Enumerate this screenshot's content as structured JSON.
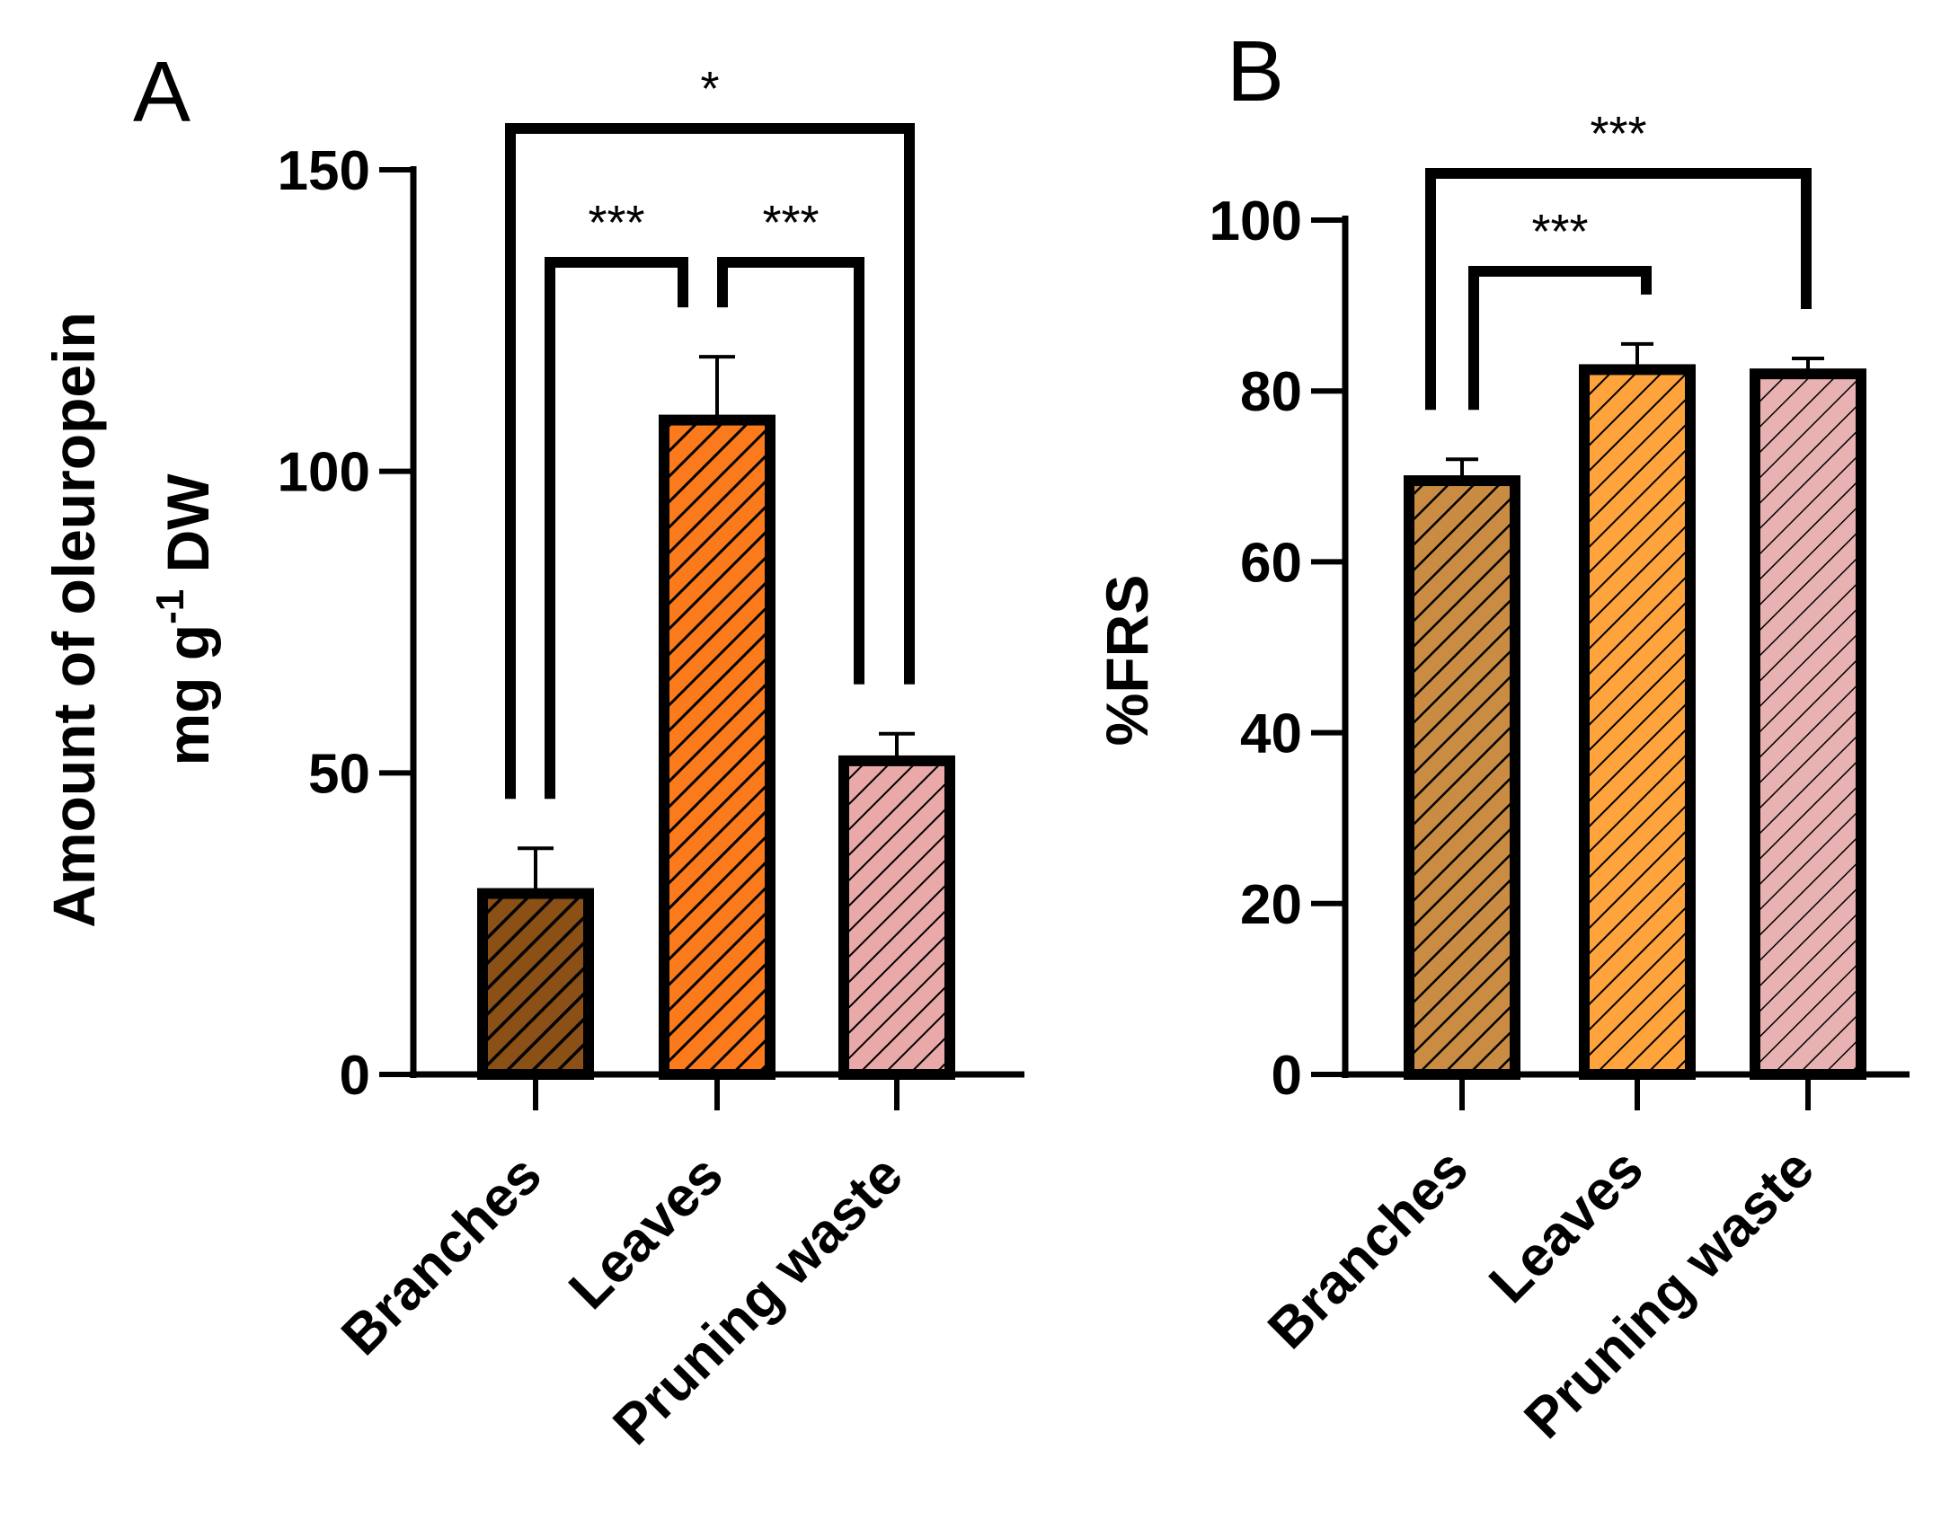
{
  "chart_data": [
    {
      "panel": "A",
      "type": "bar",
      "categories": [
        "Branches",
        "Leaves",
        "Pruning waste"
      ],
      "values": [
        30,
        108.5,
        52
      ],
      "errors": [
        7.5,
        10.5,
        4.5
      ],
      "colors": [
        "#8a5016",
        "#fb7a1c",
        "#e9a9a9"
      ],
      "ylabel_line1": "Amount of oleuropein",
      "ylabel_line2_prefix": "mg g",
      "ylabel_line2_sup": "-1",
      "ylabel_line2_suffix": " DW",
      "ylim": [
        0,
        150
      ],
      "yticks": [
        0,
        50,
        100,
        150
      ],
      "significance": [
        {
          "from": 0,
          "to": 2,
          "label": "*"
        },
        {
          "from": 0,
          "to": 1,
          "label": "***"
        },
        {
          "from": 1,
          "to": 2,
          "label": "***"
        }
      ]
    },
    {
      "panel": "B",
      "type": "bar",
      "categories": [
        "Branches",
        "Leaves",
        "Pruning waste"
      ],
      "values": [
        69.5,
        82.5,
        82
      ],
      "errors": [
        2.5,
        3,
        1.8
      ],
      "colors": [
        "#c98c42",
        "#ffa33d",
        "#e8b2b2"
      ],
      "ylabel": "%FRS",
      "ylim": [
        0,
        100
      ],
      "yticks": [
        0,
        20,
        40,
        60,
        80,
        100
      ],
      "significance": [
        {
          "from": 0,
          "to": 2,
          "label": "***"
        },
        {
          "from": 0,
          "to": 1,
          "label": "***"
        }
      ]
    }
  ]
}
